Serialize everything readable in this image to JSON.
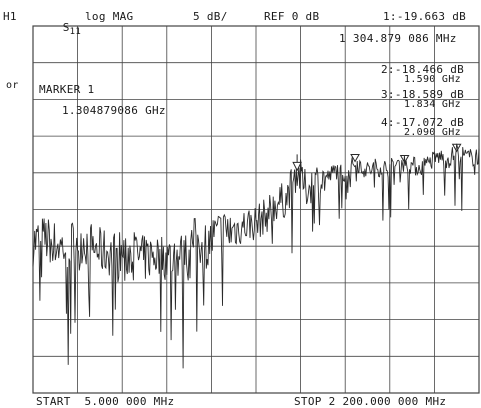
{
  "header": {
    "channel": "H1",
    "param_main": "S",
    "param_sub": "11",
    "format": "log MAG",
    "scale": "5 dB/",
    "ref": "REF 0 dB",
    "active_marker_readout": "1:-19.663 dB"
  },
  "side_label": "or",
  "marker_block": {
    "title": "MARKER 1",
    "frequency": "1.304879086 GHz"
  },
  "marker_table": [
    {
      "line1": "1 304.879 086 MHz",
      "line2": ""
    },
    {
      "line1": "2:-18.466 dB",
      "line2": "1.590 GHz"
    },
    {
      "line1": "3:-18.589 dB",
      "line2": "1.834 GHz"
    },
    {
      "line1": "4:-17.072 dB",
      "line2": "2.090 GHz"
    }
  ],
  "footer": {
    "start": "START  5.000 000 MHz",
    "stop": "STOP 2 200.000 000 MHz"
  },
  "colors": {
    "trace": "#2a2a2a",
    "grid": "#444444",
    "text": "#1a1a1a"
  },
  "chart_data": {
    "type": "line",
    "title": "",
    "xlabel": "",
    "ylabel": "",
    "x_unit": "MHz",
    "xlim": [
      5,
      2200
    ],
    "ylim": [
      -50,
      0
    ],
    "grid": true,
    "y_divisions": 10,
    "x_divisions": 10,
    "series": [
      {
        "x": [
          5,
          60,
          120,
          170,
          220,
          270,
          330,
          380,
          440,
          500,
          550,
          600,
          650,
          700,
          760,
          800,
          860,
          900,
          930,
          1000,
          1050,
          1100,
          1150,
          1200,
          1250,
          1305,
          1350,
          1400,
          1450,
          1500,
          1550,
          1590,
          1650,
          1700,
          1750,
          1834,
          1900,
          1950,
          2000,
          2050,
          2090,
          2150,
          2200
        ],
        "values": [
          -29.5,
          -28.9,
          -29.8,
          -30.2,
          -28.8,
          -29.6,
          -30.6,
          -30.9,
          -31.0,
          -30.8,
          -31.8,
          -31.1,
          -31.4,
          -31.7,
          -30.9,
          -29.2,
          -29.9,
          -28.6,
          -28.1,
          -27.8,
          -27.1,
          -26.8,
          -25.9,
          -24.2,
          -23.6,
          -19.7,
          -22.3,
          -21.0,
          -20.8,
          -19.6,
          -20.2,
          -18.5,
          -19.7,
          -19.2,
          -19.4,
          -18.6,
          -19.3,
          -18.7,
          -17.8,
          -18.2,
          -17.1,
          -18.0,
          -17.6
        ]
      }
    ],
    "markers": [
      {
        "label": "1",
        "x": 1304.879086,
        "y": -19.663,
        "active": true
      },
      {
        "label": "2",
        "x": 1590,
        "y": -18.466,
        "active": false
      },
      {
        "label": "3",
        "x": 1834,
        "y": -18.589,
        "active": false
      },
      {
        "label": "4",
        "x": 2090,
        "y": -17.072,
        "active": false
      }
    ]
  }
}
